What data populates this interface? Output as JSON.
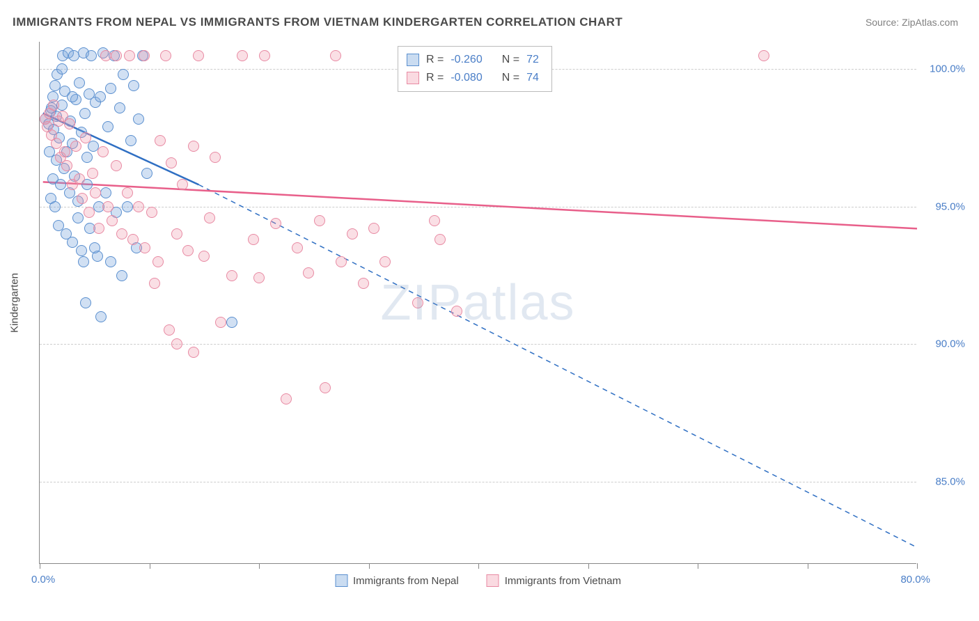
{
  "title": "IMMIGRANTS FROM NEPAL VS IMMIGRANTS FROM VIETNAM KINDERGARTEN CORRELATION CHART",
  "source_label": "Source: ZipAtlas.com",
  "y_axis_title": "Kindergarten",
  "watermark_bold": "ZIP",
  "watermark_light": "atlas",
  "chart": {
    "type": "scatter",
    "background_color": "#ffffff",
    "grid_color": "#cccccc",
    "axis_color": "#888888",
    "x_min": 0,
    "x_max": 80,
    "y_min": 82,
    "y_max": 101,
    "x_origin_label": "0.0%",
    "x_max_label": "80.0%",
    "x_ticks": [
      0,
      10,
      20,
      30,
      40,
      50,
      60,
      70,
      80
    ],
    "y_ticks": [
      85,
      90,
      95,
      100
    ],
    "y_tick_labels": [
      "85.0%",
      "90.0%",
      "95.0%",
      "100.0%"
    ],
    "marker_radius": 8,
    "series": [
      {
        "id": "nepal",
        "label": "Immigrants from Nepal",
        "color_fill": "rgba(122,167,221,0.35)",
        "color_stroke": "#5a8fcf",
        "r_value": "-0.260",
        "n_value": "72",
        "trend": {
          "solid": {
            "x1": 0.3,
            "y1": 98.4,
            "x2": 14.5,
            "y2": 95.8
          },
          "dashed": {
            "x1": 14.5,
            "y1": 95.8,
            "x2": 80,
            "y2": 82.6
          },
          "width": 2.5,
          "color": "#2f6fc3"
        },
        "points": [
          [
            0.5,
            98.2
          ],
          [
            0.8,
            98.0
          ],
          [
            1.0,
            98.5
          ],
          [
            1.2,
            99.0
          ],
          [
            1.3,
            97.8
          ],
          [
            1.5,
            98.3
          ],
          [
            1.6,
            99.8
          ],
          [
            1.8,
            97.5
          ],
          [
            2.0,
            98.7
          ],
          [
            2.1,
            100.5
          ],
          [
            2.3,
            99.2
          ],
          [
            2.5,
            97.0
          ],
          [
            2.6,
            100.6
          ],
          [
            2.8,
            98.1
          ],
          [
            3.0,
            97.3
          ],
          [
            3.1,
            100.5
          ],
          [
            3.3,
            98.9
          ],
          [
            3.5,
            95.2
          ],
          [
            3.6,
            99.5
          ],
          [
            3.8,
            97.7
          ],
          [
            4.0,
            100.6
          ],
          [
            4.1,
            98.4
          ],
          [
            4.3,
            96.8
          ],
          [
            4.5,
            99.1
          ],
          [
            4.7,
            100.5
          ],
          [
            4.9,
            97.2
          ],
          [
            5.1,
            98.8
          ],
          [
            5.3,
            93.2
          ],
          [
            5.5,
            99.0
          ],
          [
            5.8,
            100.6
          ],
          [
            6.0,
            95.5
          ],
          [
            6.2,
            97.9
          ],
          [
            6.5,
            99.3
          ],
          [
            6.8,
            100.5
          ],
          [
            7.0,
            94.8
          ],
          [
            7.3,
            98.6
          ],
          [
            7.6,
            99.8
          ],
          [
            8.0,
            95.0
          ],
          [
            8.3,
            97.4
          ],
          [
            8.6,
            99.4
          ],
          [
            5.6,
            91.0
          ],
          [
            9.0,
            98.2
          ],
          [
            9.4,
            100.5
          ],
          [
            9.8,
            96.2
          ],
          [
            1.0,
            95.3
          ],
          [
            1.2,
            96.0
          ],
          [
            1.4,
            95.0
          ],
          [
            1.5,
            96.7
          ],
          [
            1.7,
            94.3
          ],
          [
            1.9,
            95.8
          ],
          [
            2.2,
            96.4
          ],
          [
            2.4,
            94.0
          ],
          [
            2.7,
            95.5
          ],
          [
            3.0,
            93.7
          ],
          [
            3.2,
            96.1
          ],
          [
            3.5,
            94.6
          ],
          [
            3.8,
            93.4
          ],
          [
            4.0,
            93.0
          ],
          [
            4.3,
            95.8
          ],
          [
            4.6,
            94.2
          ],
          [
            5.0,
            93.5
          ],
          [
            5.4,
            95.0
          ],
          [
            0.9,
            97.0
          ],
          [
            1.1,
            98.6
          ],
          [
            1.4,
            99.4
          ],
          [
            6.5,
            93.0
          ],
          [
            7.5,
            92.5
          ],
          [
            8.8,
            93.5
          ],
          [
            2.0,
            100.0
          ],
          [
            3.0,
            99.0
          ],
          [
            17.5,
            90.8
          ],
          [
            4.2,
            91.5
          ]
        ]
      },
      {
        "id": "vietnam",
        "label": "Immigrants from Vietnam",
        "color_fill": "rgba(240,150,170,0.30)",
        "color_stroke": "#e88aa3",
        "r_value": "-0.080",
        "n_value": "74",
        "trend": {
          "solid": {
            "x1": 0.3,
            "y1": 95.9,
            "x2": 80,
            "y2": 94.2
          },
          "dashed": null,
          "width": 2.5,
          "color": "#e85f8a"
        },
        "points": [
          [
            0.5,
            98.2
          ],
          [
            0.7,
            97.9
          ],
          [
            0.9,
            98.4
          ],
          [
            1.1,
            97.6
          ],
          [
            1.3,
            98.7
          ],
          [
            1.5,
            97.3
          ],
          [
            1.7,
            98.1
          ],
          [
            1.9,
            96.8
          ],
          [
            2.1,
            98.3
          ],
          [
            2.3,
            97.0
          ],
          [
            2.5,
            96.5
          ],
          [
            2.7,
            98.0
          ],
          [
            3.0,
            95.8
          ],
          [
            3.3,
            97.2
          ],
          [
            3.6,
            96.0
          ],
          [
            3.9,
            95.3
          ],
          [
            4.2,
            97.5
          ],
          [
            4.5,
            94.8
          ],
          [
            4.8,
            96.2
          ],
          [
            5.1,
            95.5
          ],
          [
            5.4,
            94.2
          ],
          [
            5.8,
            97.0
          ],
          [
            6.2,
            95.0
          ],
          [
            6.6,
            94.5
          ],
          [
            7.0,
            96.5
          ],
          [
            7.5,
            94.0
          ],
          [
            8.0,
            95.5
          ],
          [
            8.5,
            93.8
          ],
          [
            9.0,
            95.0
          ],
          [
            9.6,
            93.5
          ],
          [
            10.2,
            94.8
          ],
          [
            10.8,
            93.0
          ],
          [
            11.0,
            97.4
          ],
          [
            11.5,
            100.5
          ],
          [
            12.0,
            96.6
          ],
          [
            12.5,
            94.0
          ],
          [
            13.0,
            95.8
          ],
          [
            13.5,
            93.4
          ],
          [
            14.0,
            97.2
          ],
          [
            14.5,
            100.5
          ],
          [
            15.0,
            93.2
          ],
          [
            15.5,
            94.6
          ],
          [
            16.0,
            96.8
          ],
          [
            11.8,
            90.5
          ],
          [
            17.5,
            92.5
          ],
          [
            18.5,
            100.5
          ],
          [
            19.5,
            93.8
          ],
          [
            20.5,
            100.5
          ],
          [
            21.5,
            94.4
          ],
          [
            20.0,
            92.4
          ],
          [
            23.5,
            93.5
          ],
          [
            24.5,
            92.6
          ],
          [
            25.5,
            94.5
          ],
          [
            27.0,
            100.5
          ],
          [
            27.5,
            93.0
          ],
          [
            28.5,
            94.0
          ],
          [
            22.5,
            88.0
          ],
          [
            30.5,
            94.2
          ],
          [
            31.5,
            93.0
          ],
          [
            26.0,
            88.4
          ],
          [
            34.5,
            91.5
          ],
          [
            29.5,
            92.2
          ],
          [
            36.5,
            93.8
          ],
          [
            38.0,
            91.2
          ],
          [
            9.5,
            100.5
          ],
          [
            7.0,
            100.5
          ],
          [
            6.0,
            100.5
          ],
          [
            8.2,
            100.5
          ],
          [
            36.0,
            94.5
          ],
          [
            12.5,
            90.0
          ],
          [
            14.0,
            89.7
          ],
          [
            16.5,
            90.8
          ],
          [
            66.0,
            100.5
          ],
          [
            10.5,
            92.2
          ]
        ]
      }
    ]
  },
  "legend_top": {
    "r_label": "R =",
    "n_label": "N ="
  }
}
